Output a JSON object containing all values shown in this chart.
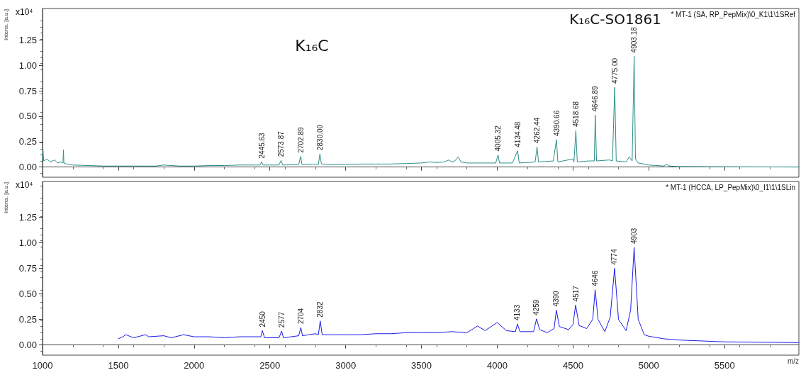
{
  "chart_data": [
    {
      "type": "line",
      "ylabel": "Intens. [a.u.]",
      "annotations": [
        "x10⁴",
        "* MT-1 (SA, RP_PepMix)\\0_K1\\1\\1SRef",
        "K₁₆C",
        "K₁₆C-SO1861",
        {
          "text": "2445.63",
          "x": 2445.63,
          "y": 0.05
        },
        {
          "text": "2573.87",
          "x": 2573.87,
          "y": 0.065
        },
        {
          "text": "2702.89",
          "x": 2702.89,
          "y": 0.105
        },
        {
          "text": "2830.00",
          "x": 2830,
          "y": 0.13
        },
        {
          "text": "4005.32",
          "x": 4005.32,
          "y": 0.12
        },
        {
          "text": "4134.48",
          "x": 4134.48,
          "y": 0.16
        },
        {
          "text": "4262.44",
          "x": 4262.44,
          "y": 0.2
        },
        {
          "text": "4390.66",
          "x": 4390.66,
          "y": 0.27
        },
        {
          "text": "4518.68",
          "x": 4518.68,
          "y": 0.36
        },
        {
          "text": "4646.89",
          "x": 4646.89,
          "y": 0.51
        },
        {
          "text": "4775.00",
          "x": 4775,
          "y": 0.785
        },
        {
          "text": "4903.18",
          "x": 4903.18,
          "y": 1.09
        }
      ],
      "xlim": [
        1000,
        5990
      ],
      "xticks": [
        1000,
        1500,
        2000,
        2500,
        3000,
        3500,
        4000,
        4500,
        5000,
        5500
      ],
      "ylim": [
        -0.1,
        1.56
      ],
      "yticks": [
        {
          "value": 0,
          "label": "0.00"
        },
        {
          "value": 0.25,
          "label": "0.25"
        },
        {
          "value": 0.5,
          "label": "0.50"
        },
        {
          "value": 0.75,
          "label": "0.75"
        },
        {
          "value": 1,
          "label": "1.00"
        },
        {
          "value": 1.25,
          "label": "1.25"
        }
      ],
      "tick_labels": "y",
      "series": [
        {
          "color": "#2a9088",
          "x": [
            1000,
            1003,
            1008,
            1030,
            1050,
            1080,
            1100,
            1120,
            1135,
            1138,
            1141,
            1160,
            1200,
            1300,
            1400,
            1500,
            1600,
            1700,
            1750,
            1800,
            1900,
            2000,
            2100,
            2200,
            2300,
            2400,
            2435,
            2445.63,
            2455,
            2560,
            2573.87,
            2585,
            2690,
            2702.89,
            2712,
            2780,
            2820,
            2830,
            2840,
            2900,
            3000,
            3100,
            3200,
            3300,
            3400,
            3500,
            3550,
            3600,
            3650,
            3680,
            3700,
            3720,
            3743,
            3760,
            3800,
            3900,
            3990,
            4005.32,
            4015,
            4100,
            4134.48,
            4145,
            4250,
            4262.44,
            4272,
            4370,
            4390.66,
            4400,
            4500,
            4506,
            4518.68,
            4528,
            4600,
            4640,
            4646.89,
            4655,
            4740,
            4760,
            4775,
            4785,
            4850,
            4870,
            4890,
            4903.18,
            4912,
            4930,
            5000,
            5100,
            5120,
            5130,
            5200,
            5500,
            5990
          ],
          "values": [
            0.05,
            0.17,
            0.06,
            0.08,
            0.05,
            0.07,
            0.04,
            0.05,
            0.04,
            0.17,
            0.04,
            0.03,
            0.02,
            0.015,
            0.01,
            0.01,
            0.01,
            0.01,
            0.01,
            0.02,
            0.01,
            0.01,
            0.015,
            0.015,
            0.02,
            0.02,
            0.02,
            0.05,
            0.02,
            0.02,
            0.065,
            0.02,
            0.025,
            0.105,
            0.025,
            0.03,
            0.025,
            0.13,
            0.03,
            0.025,
            0.025,
            0.03,
            0.03,
            0.03,
            0.035,
            0.04,
            0.05,
            0.045,
            0.05,
            0.07,
            0.05,
            0.06,
            0.1,
            0.05,
            0.04,
            0.04,
            0.04,
            0.12,
            0.04,
            0.04,
            0.16,
            0.04,
            0.05,
            0.2,
            0.05,
            0.06,
            0.27,
            0.05,
            0.08,
            0.05,
            0.36,
            0.05,
            0.06,
            0.06,
            0.51,
            0.06,
            0.07,
            0.06,
            0.785,
            0.06,
            0.05,
            0.1,
            0.06,
            1.09,
            0.08,
            0.04,
            0.02,
            0.01,
            0.03,
            0.01,
            0.005,
            0.003,
            0
          ]
        }
      ]
    },
    {
      "type": "line",
      "ylabel": "Intens. [a.u.]",
      "xlabel": "m/z",
      "annotations": [
        "x10⁴",
        "* MT-1 (HCCA, LP_PepMix)\\0_I1\\1\\1SLin",
        {
          "text": "2450",
          "x": 2450,
          "y": 0.14
        },
        {
          "text": "2577",
          "x": 2577,
          "y": 0.135
        },
        {
          "text": "2704",
          "x": 2704,
          "y": 0.17
        },
        {
          "text": "2832",
          "x": 2832,
          "y": 0.235
        },
        {
          "text": "4133",
          "x": 4133,
          "y": 0.205
        },
        {
          "text": "4259",
          "x": 4259,
          "y": 0.255
        },
        {
          "text": "4390",
          "x": 4390,
          "y": 0.34
        },
        {
          "text": "4517",
          "x": 4517,
          "y": 0.39
        },
        {
          "text": "4646",
          "x": 4646,
          "y": 0.54
        },
        {
          "text": "4774",
          "x": 4774,
          "y": 0.75
        },
        {
          "text": "4903",
          "x": 4903,
          "y": 0.955
        }
      ],
      "xlim": [
        1000,
        5990
      ],
      "xticks": [
        1000,
        1500,
        2000,
        2500,
        3000,
        3500,
        4000,
        4500,
        5000,
        5500
      ],
      "ylim": [
        -0.1,
        1.6
      ],
      "yticks": [
        {
          "value": 0,
          "label": "0.00"
        },
        {
          "value": 0.25,
          "label": "0.25"
        },
        {
          "value": 0.5,
          "label": "0.50"
        },
        {
          "value": 0.75,
          "label": "0.75"
        },
        {
          "value": 1,
          "label": "1.00"
        },
        {
          "value": 1.25,
          "label": "1.25"
        }
      ],
      "series": [
        {
          "color": "#1a1aeb",
          "x": [
            1500,
            1530,
            1550,
            1600,
            1680,
            1700,
            1800,
            1850,
            1930,
            2000,
            2100,
            2200,
            2300,
            2400,
            2440,
            2450,
            2465,
            2560,
            2577,
            2590,
            2690,
            2704,
            2715,
            2800,
            2820,
            2832,
            2845,
            2900,
            3000,
            3100,
            3200,
            3300,
            3400,
            3500,
            3600,
            3700,
            3800,
            3870,
            3920,
            4000,
            4060,
            4120,
            4133,
            4150,
            4240,
            4259,
            4280,
            4330,
            4375,
            4390,
            4410,
            4470,
            4500,
            4517,
            4540,
            4590,
            4630,
            4646,
            4665,
            4710,
            4745,
            4774,
            4800,
            4850,
            4880,
            4903,
            4930,
            4970,
            5000,
            5100,
            5200,
            5500,
            5990
          ],
          "values": [
            0.06,
            0.08,
            0.1,
            0.07,
            0.1,
            0.08,
            0.09,
            0.07,
            0.1,
            0.08,
            0.08,
            0.07,
            0.08,
            0.08,
            0.08,
            0.14,
            0.07,
            0.07,
            0.135,
            0.07,
            0.09,
            0.17,
            0.09,
            0.11,
            0.1,
            0.235,
            0.1,
            0.1,
            0.1,
            0.1,
            0.11,
            0.11,
            0.12,
            0.12,
            0.12,
            0.13,
            0.12,
            0.185,
            0.14,
            0.22,
            0.14,
            0.13,
            0.205,
            0.13,
            0.13,
            0.255,
            0.15,
            0.12,
            0.16,
            0.34,
            0.18,
            0.15,
            0.2,
            0.39,
            0.19,
            0.16,
            0.25,
            0.54,
            0.25,
            0.13,
            0.27,
            0.75,
            0.25,
            0.14,
            0.34,
            0.955,
            0.25,
            0.1,
            0.085,
            0.06,
            0.048,
            0.03,
            0.023
          ]
        }
      ]
    }
  ]
}
